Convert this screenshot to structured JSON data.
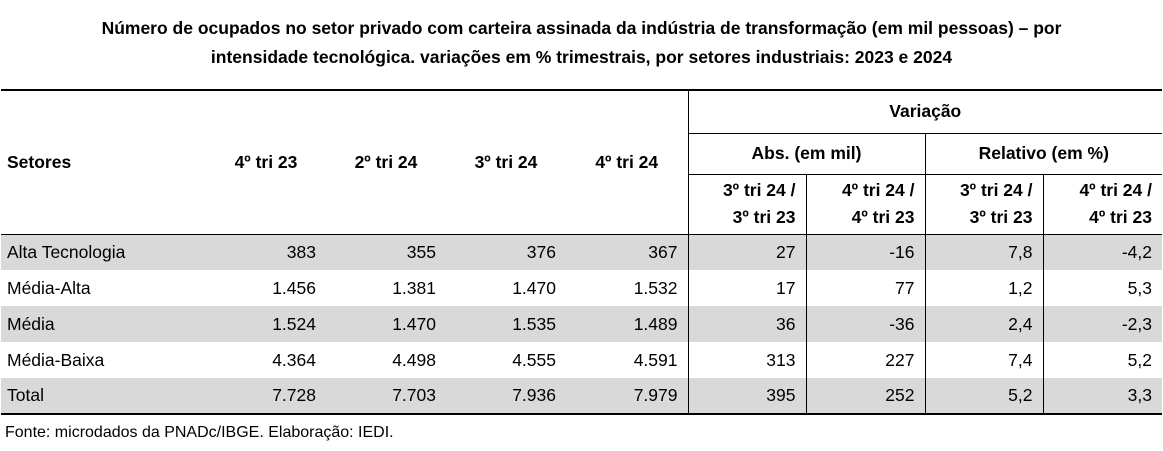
{
  "title": {
    "line1": "Número de ocupados no setor privado com carteira assinada da indústria de transformação (em mil pessoas) – por",
    "line2": "intensidade tecnológica. variações em % trimestrais, por setores industriais:  2023 e 2024"
  },
  "header": {
    "setores": "Setores",
    "periods": [
      "4º tri 23",
      "2º tri 24",
      "3º tri 24",
      "4º tri 24"
    ],
    "variacao": "Variação",
    "abs": "Abs. (em mil)",
    "relativo": "Relativo (em %)",
    "sub": [
      [
        "3º tri 24 /",
        "3º tri 23"
      ],
      [
        "4º tri 24 /",
        "4º tri 23"
      ],
      [
        "3º tri 24 /",
        "3º tri 23"
      ],
      [
        "4º tri 24 /",
        "4º tri 23"
      ]
    ]
  },
  "rows": [
    {
      "setor": "Alta Tecnologia",
      "values": [
        "383",
        "355",
        "376",
        "367",
        "27",
        "-16",
        "7,8",
        "-4,2"
      ]
    },
    {
      "setor": "Média-Alta",
      "values": [
        "1.456",
        "1.381",
        "1.470",
        "1.532",
        "17",
        "77",
        "1,2",
        "5,3"
      ]
    },
    {
      "setor": "Média",
      "values": [
        "1.524",
        "1.470",
        "1.535",
        "1.489",
        "36",
        "-36",
        "2,4",
        "-2,3"
      ]
    },
    {
      "setor": "Média-Baixa",
      "values": [
        "4.364",
        "4.498",
        "4.555",
        "4.591",
        "313",
        "227",
        "7,4",
        "5,2"
      ]
    },
    {
      "setor": "Total",
      "values": [
        "7.728",
        "7.703",
        "7.936",
        "7.979",
        "395",
        "252",
        "5,2",
        "3,3"
      ]
    }
  ],
  "source": "Fonte: microdados da PNADc/IBGE. Elaboração: IEDI."
}
